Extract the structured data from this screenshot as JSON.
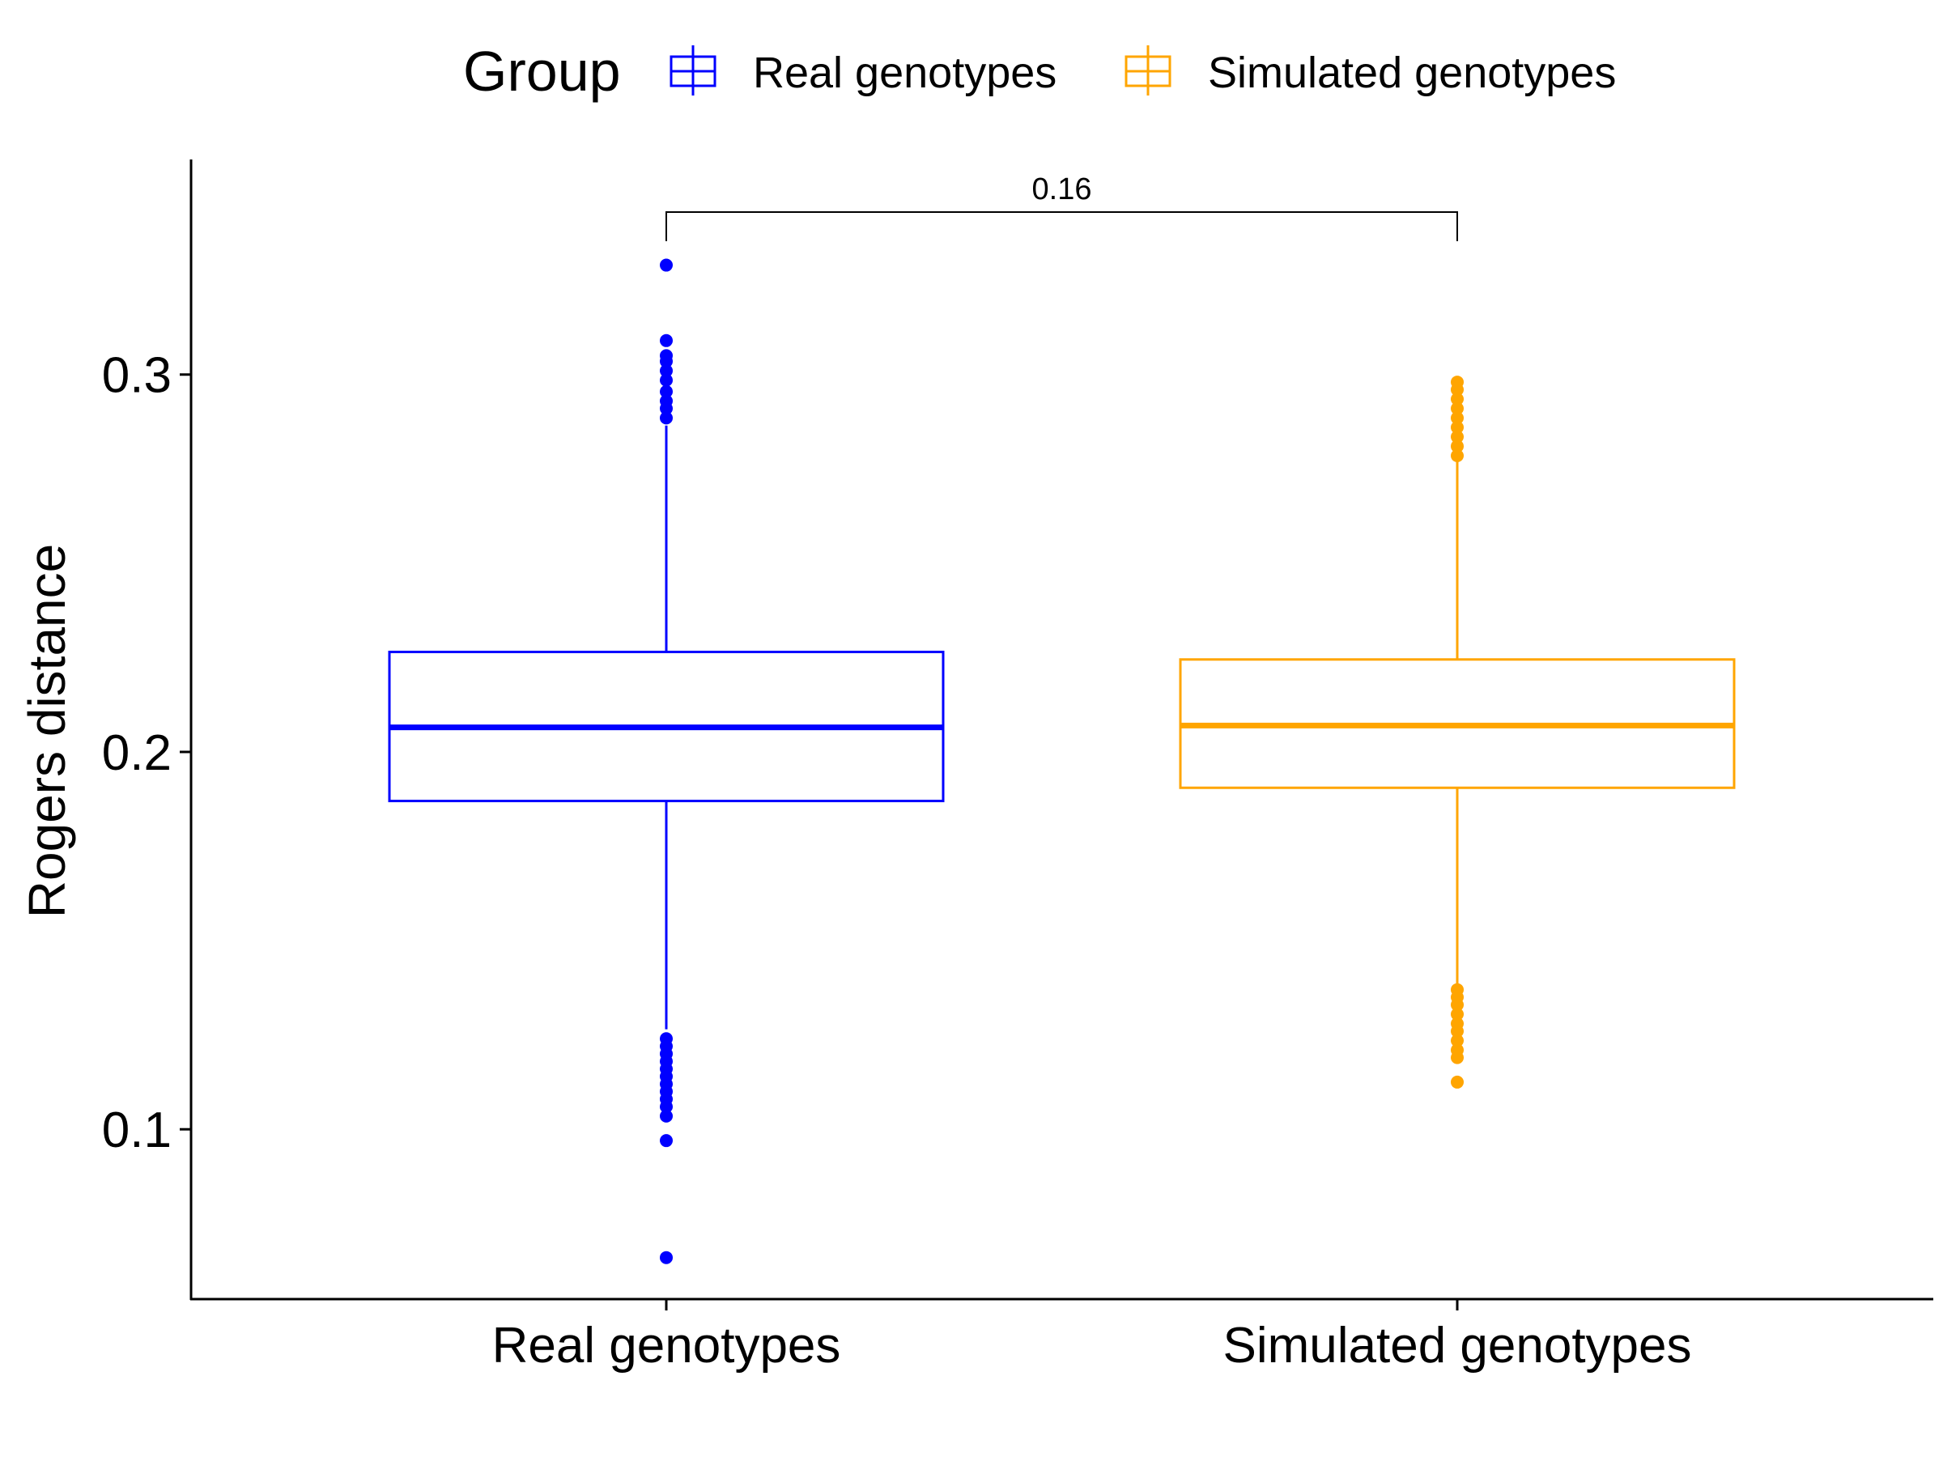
{
  "chart_data": {
    "type": "box",
    "ylabel": "Rogers distance",
    "xlabel": "",
    "ylim": [
      0.055,
      0.357
    ],
    "yticks": [
      0.1,
      0.2,
      0.3
    ],
    "ytick_labels": [
      "0.1",
      "0.2",
      "0.3"
    ],
    "grid": false,
    "legend": {
      "title": "Group",
      "placement": "top",
      "entries": [
        "Real genotypes",
        "Simulated genotypes"
      ]
    },
    "categories": [
      "Real genotypes",
      "Simulated genotypes"
    ],
    "series": [
      {
        "name": "Real genotypes",
        "color": "#0000FF",
        "q1": 0.187,
        "median": 0.2065,
        "q3": 0.2265,
        "whisker_low": 0.1265,
        "whisker_high": 0.2865,
        "outliers": [
          0.066,
          0.097,
          0.1035,
          0.106,
          0.108,
          0.11,
          0.112,
          0.114,
          0.116,
          0.118,
          0.12,
          0.122,
          0.124,
          0.2885,
          0.291,
          0.293,
          0.2955,
          0.2985,
          0.301,
          0.3035,
          0.305,
          0.309,
          0.329
        ]
      },
      {
        "name": "Simulated genotypes",
        "color": "#FFA500",
        "q1": 0.1905,
        "median": 0.207,
        "q3": 0.2245,
        "whisker_low": 0.1385,
        "whisker_high": 0.2775,
        "outliers": [
          0.1125,
          0.119,
          0.121,
          0.1235,
          0.126,
          0.128,
          0.1305,
          0.133,
          0.135,
          0.137,
          0.2785,
          0.281,
          0.2835,
          0.286,
          0.2885,
          0.291,
          0.2935,
          0.296,
          0.298
        ]
      }
    ],
    "annotations": [
      {
        "type": "bracket",
        "from": "Real genotypes",
        "to": "Simulated genotypes",
        "label": "0.16"
      }
    ]
  }
}
